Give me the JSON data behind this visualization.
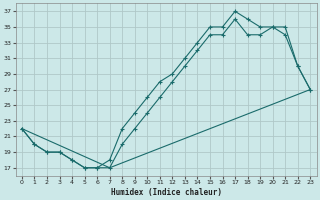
{
  "xlabel": "Humidex (Indice chaleur)",
  "bg_color": "#cce8e8",
  "grid_color": "#b0c8c8",
  "line_color": "#1a6b6b",
  "xlim": [
    -0.5,
    23.5
  ],
  "ylim": [
    16,
    38
  ],
  "xticks": [
    0,
    1,
    2,
    3,
    4,
    5,
    6,
    7,
    8,
    9,
    10,
    11,
    12,
    13,
    14,
    15,
    16,
    17,
    18,
    19,
    20,
    21,
    22,
    23
  ],
  "yticks": [
    17,
    19,
    21,
    23,
    25,
    27,
    29,
    31,
    33,
    35,
    37
  ],
  "line1_x": [
    0,
    1,
    2,
    3,
    4,
    5,
    6,
    7,
    8,
    9,
    10,
    11,
    12,
    13,
    14,
    15,
    16,
    17,
    18,
    19,
    20,
    21,
    22,
    23
  ],
  "line1_y": [
    22,
    20,
    19,
    19,
    18,
    17,
    17,
    18,
    22,
    24,
    26,
    28,
    29,
    31,
    33,
    35,
    35,
    37,
    36,
    35,
    35,
    35,
    30,
    27
  ],
  "line2_x": [
    0,
    1,
    2,
    3,
    4,
    5,
    6,
    7,
    8,
    9,
    10,
    11,
    12,
    13,
    14,
    15,
    16,
    17,
    18,
    19,
    20,
    21,
    22,
    23
  ],
  "line2_y": [
    22,
    20,
    19,
    19,
    18,
    17,
    17,
    17,
    20,
    22,
    24,
    26,
    28,
    30,
    32,
    34,
    34,
    36,
    34,
    34,
    35,
    34,
    30,
    27
  ],
  "line3_x": [
    0,
    7,
    23
  ],
  "line3_y": [
    22,
    17,
    27
  ]
}
